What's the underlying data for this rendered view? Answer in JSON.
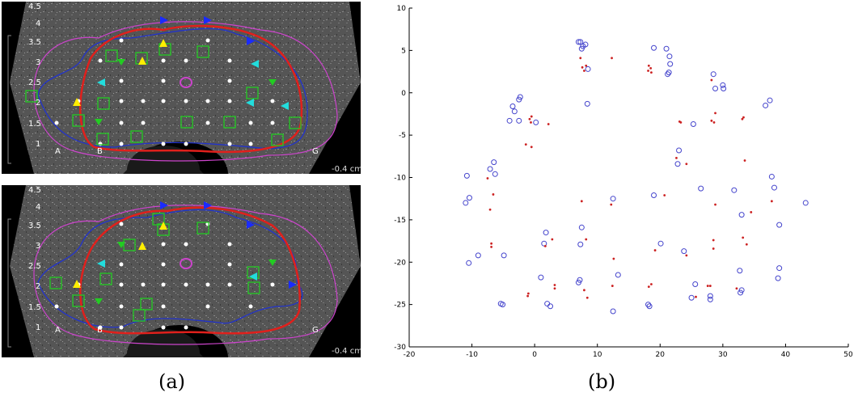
{
  "captions": {
    "a": "(a)",
    "b": "(b)"
  },
  "ultrasound": {
    "y_tick_labels": [
      "4.5",
      "4",
      "3.5",
      "3",
      "2.5",
      "2",
      "1.5",
      "1"
    ],
    "column_labels": [
      "A",
      "B",
      "G"
    ],
    "depth_label": "-0.4 cm",
    "colors": {
      "prostate_contour": "#e0201c",
      "inner_contour": "#2233cc",
      "outer_contour": "#cc44cc",
      "grid_dot": "#ffffff",
      "needle_square": "#22cc22",
      "marker_blue": "#1a2bff",
      "marker_cyan": "#22dddd",
      "marker_yellow": "#ffee00",
      "marker_green": "#22cc22"
    }
  },
  "chart_data": {
    "type": "scatter",
    "title": "",
    "xlabel": "",
    "ylabel": "",
    "xlim": [
      -20,
      50
    ],
    "ylim": [
      -30,
      10
    ],
    "x_ticks": [
      -20,
      -10,
      0,
      10,
      20,
      30,
      40,
      50
    ],
    "y_ticks": [
      10,
      5,
      0,
      -5,
      -10,
      -15,
      -20,
      -25,
      -30
    ],
    "grid": false,
    "legend": "none",
    "series": [
      {
        "marker": "circle-open",
        "color": "#4444cc",
        "points": [
          [
            7,
            6
          ],
          [
            7.3,
            6
          ],
          [
            8.1,
            5.7
          ],
          [
            7.7,
            5.5
          ],
          [
            7.5,
            5.2
          ],
          [
            19,
            5.3
          ],
          [
            21,
            5.2
          ],
          [
            21.5,
            4.3
          ],
          [
            21.6,
            3.4
          ],
          [
            21.4,
            2.4
          ],
          [
            21.2,
            2.2
          ],
          [
            8.5,
            2.8
          ],
          [
            28.5,
            2.2
          ],
          [
            28.8,
            0.5
          ],
          [
            30,
            0.9
          ],
          [
            30.1,
            0.5
          ],
          [
            8.4,
            -1.3
          ],
          [
            37.5,
            -0.9
          ],
          [
            36.8,
            -1.5
          ],
          [
            -2.3,
            -0.5
          ],
          [
            -2.5,
            -0.8
          ],
          [
            -3.5,
            -1.6
          ],
          [
            -3.2,
            -2.2
          ],
          [
            -4,
            -3.3
          ],
          [
            -2.5,
            -3.3
          ],
          [
            0.2,
            -3.5
          ],
          [
            25.3,
            -3.7
          ],
          [
            23,
            -6.8
          ],
          [
            22.8,
            -8.4
          ],
          [
            -6.5,
            -8.2
          ],
          [
            -7.1,
            -9
          ],
          [
            -6.3,
            -9.6
          ],
          [
            -10.8,
            -9.8
          ],
          [
            37.8,
            -9.9
          ],
          [
            38.2,
            -11.2
          ],
          [
            26.5,
            -11.3
          ],
          [
            31.8,
            -11.5
          ],
          [
            12.5,
            -12.5
          ],
          [
            19,
            -12.1
          ],
          [
            -10.4,
            -12.4
          ],
          [
            -11,
            -13
          ],
          [
            43.2,
            -13
          ],
          [
            33,
            -14.4
          ],
          [
            39,
            -15.6
          ],
          [
            7.5,
            -15.9
          ],
          [
            1.8,
            -16.5
          ],
          [
            1.5,
            -17.8
          ],
          [
            7.3,
            -17.9
          ],
          [
            20.1,
            -17.8
          ],
          [
            -9,
            -19.2
          ],
          [
            -4.9,
            -19.2
          ],
          [
            23.8,
            -18.7
          ],
          [
            -10.5,
            -20.1
          ],
          [
            32.7,
            -21
          ],
          [
            39,
            -20.7
          ],
          [
            38.8,
            -21.9
          ],
          [
            1,
            -21.8
          ],
          [
            7.2,
            -22.1
          ],
          [
            7,
            -22.4
          ],
          [
            13.3,
            -21.5
          ],
          [
            25.6,
            -22.6
          ],
          [
            33,
            -23.3
          ],
          [
            32.8,
            -23.6
          ],
          [
            25,
            -24.2
          ],
          [
            28,
            -24
          ],
          [
            28,
            -24.4
          ],
          [
            -5.4,
            -24.9
          ],
          [
            -5.1,
            -25
          ],
          [
            2,
            -24.9
          ],
          [
            2.5,
            -25.2
          ],
          [
            18.1,
            -25
          ],
          [
            18.3,
            -25.2
          ],
          [
            12.5,
            -25.8
          ]
        ]
      },
      {
        "marker": "dot",
        "color": "#cc2222",
        "points": [
          [
            7.3,
            4.1
          ],
          [
            7.6,
            3
          ],
          [
            8.2,
            3.2
          ],
          [
            7.9,
            2.6
          ],
          [
            12.3,
            4.1
          ],
          [
            18.2,
            3.2
          ],
          [
            18.5,
            2.9
          ],
          [
            18.1,
            2.6
          ],
          [
            18.6,
            2.4
          ],
          [
            28.2,
            1.5
          ],
          [
            28.8,
            -2.4
          ],
          [
            28.2,
            -3.3
          ],
          [
            28.6,
            -3.5
          ],
          [
            33.3,
            -2.9
          ],
          [
            33.1,
            -3.1
          ],
          [
            23.1,
            -3.4
          ],
          [
            23.3,
            -3.5
          ],
          [
            -0.5,
            -2.8
          ],
          [
            -0.8,
            -3.1
          ],
          [
            -0.6,
            -3.5
          ],
          [
            2.2,
            -3.7
          ],
          [
            -1.4,
            -6.1
          ],
          [
            -0.5,
            -6.4
          ],
          [
            22.6,
            -7.7
          ],
          [
            24.2,
            -8.4
          ],
          [
            33.5,
            -8
          ],
          [
            -7.5,
            -10.1
          ],
          [
            -6.6,
            -12
          ],
          [
            -7.1,
            -13.8
          ],
          [
            7.5,
            -12.8
          ],
          [
            12.2,
            -13.2
          ],
          [
            20.7,
            -12.1
          ],
          [
            28.8,
            -13.2
          ],
          [
            37.8,
            -12.8
          ],
          [
            34.5,
            -14.1
          ],
          [
            2.8,
            -17.3
          ],
          [
            1.7,
            -18.1
          ],
          [
            8.2,
            -17.3
          ],
          [
            28.5,
            -17.4
          ],
          [
            33.2,
            -17.1
          ],
          [
            33.8,
            -17.9
          ],
          [
            -6.9,
            -17.8
          ],
          [
            -6.9,
            -18.2
          ],
          [
            12.6,
            -19.6
          ],
          [
            19.2,
            -18.6
          ],
          [
            24.2,
            -19.2
          ],
          [
            28.5,
            -18.4
          ],
          [
            -1,
            -23.7
          ],
          [
            -1.1,
            -24
          ],
          [
            3.2,
            -22.7
          ],
          [
            3.2,
            -23.1
          ],
          [
            7.9,
            -23.3
          ],
          [
            8.4,
            -24.2
          ],
          [
            12.4,
            -22.8
          ],
          [
            18.2,
            -22.9
          ],
          [
            18.6,
            -22.6
          ],
          [
            25.7,
            -24.1
          ],
          [
            27.6,
            -22.8
          ],
          [
            28,
            -22.8
          ],
          [
            32.2,
            -23.1
          ]
        ]
      }
    ]
  }
}
